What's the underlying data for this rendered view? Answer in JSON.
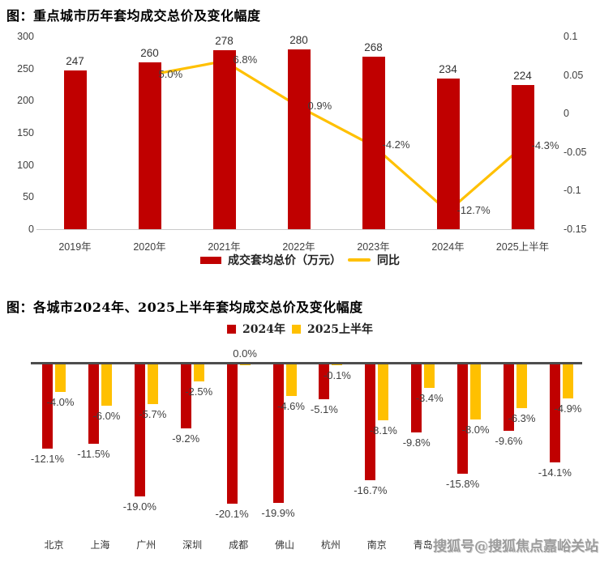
{
  "watermark": "搜狐号@搜狐焦点嘉峪关站",
  "colors": {
    "bar_red": "#C00000",
    "line_yellow": "#FFC000",
    "axis_dark": "#4d4d4d"
  },
  "chart_data": [
    {
      "type": "bar",
      "title": "图：重点城市历年套均成交总价及变化幅度",
      "categories": [
        "2019年",
        "2020年",
        "2021年",
        "2022年",
        "2023年",
        "2024年",
        "2025上半年"
      ],
      "series": [
        {
          "name": "成交套均总价（万元）",
          "type": "bar",
          "color": "#C00000",
          "values": [
            247,
            260,
            278,
            280,
            268,
            234,
            224
          ],
          "labels": [
            "247",
            "260",
            "278",
            "280",
            "268",
            "234",
            "224"
          ]
        },
        {
          "name": "同比",
          "type": "line",
          "color": "#FFC000",
          "values": [
            null,
            0.05,
            0.068,
            0.009,
            -0.042,
            -0.127,
            -0.043
          ],
          "labels": [
            "",
            "5.0%",
            "6.8%",
            "0.9%",
            "-4.2%",
            "-12.7%",
            "-4.3%"
          ]
        }
      ],
      "left_axis": {
        "ticks": [
          "300",
          "250",
          "200",
          "150",
          "100",
          "50",
          "0"
        ],
        "min": 0,
        "max": 300
      },
      "right_axis": {
        "ticks": [
          "0.1",
          "0.05",
          "0",
          "-0.05",
          "-0.1",
          "-0.15"
        ],
        "min": -0.15,
        "max": 0.1
      },
      "legend_position": "bottom",
      "grid": false
    },
    {
      "type": "bar",
      "title": "图：各城市2024年、2025上半年套均成交总价及变化幅度",
      "categories": [
        "北京",
        "上海",
        "广州",
        "深圳",
        "成都",
        "佛山",
        "杭州",
        "南京",
        "青岛",
        "",
        "",
        ""
      ],
      "series": [
        {
          "name": "2024年",
          "color": "#C00000",
          "values": [
            -12.1,
            -11.5,
            -19.0,
            -9.2,
            -20.1,
            -19.9,
            -5.1,
            -16.7,
            -9.8,
            -15.8,
            -9.6,
            -14.1
          ],
          "labels": [
            "-12.1%",
            "-11.5%",
            "-19.0%",
            "-9.2%",
            "-20.1%",
            "-19.9%",
            "-5.1%",
            "-16.7%",
            "-9.8%",
            "-15.8%",
            "-9.6%",
            "-14.1%"
          ]
        },
        {
          "name": "2025上半年",
          "color": "#FFC000",
          "values": [
            -4.0,
            -6.0,
            -5.7,
            -2.5,
            0.0,
            -4.6,
            -0.1,
            -8.1,
            -3.4,
            -8.0,
            -6.3,
            -4.9
          ],
          "labels": [
            "-4.0%",
            "-6.0%",
            "-5.7%",
            "-2.5%",
            "0.0%",
            "-4.6%",
            "-0.1%",
            "-8.1%",
            "-3.4%",
            "-8.0%",
            "-6.3%",
            "-4.9%"
          ]
        }
      ],
      "legend_position": "top",
      "grid": false
    }
  ]
}
